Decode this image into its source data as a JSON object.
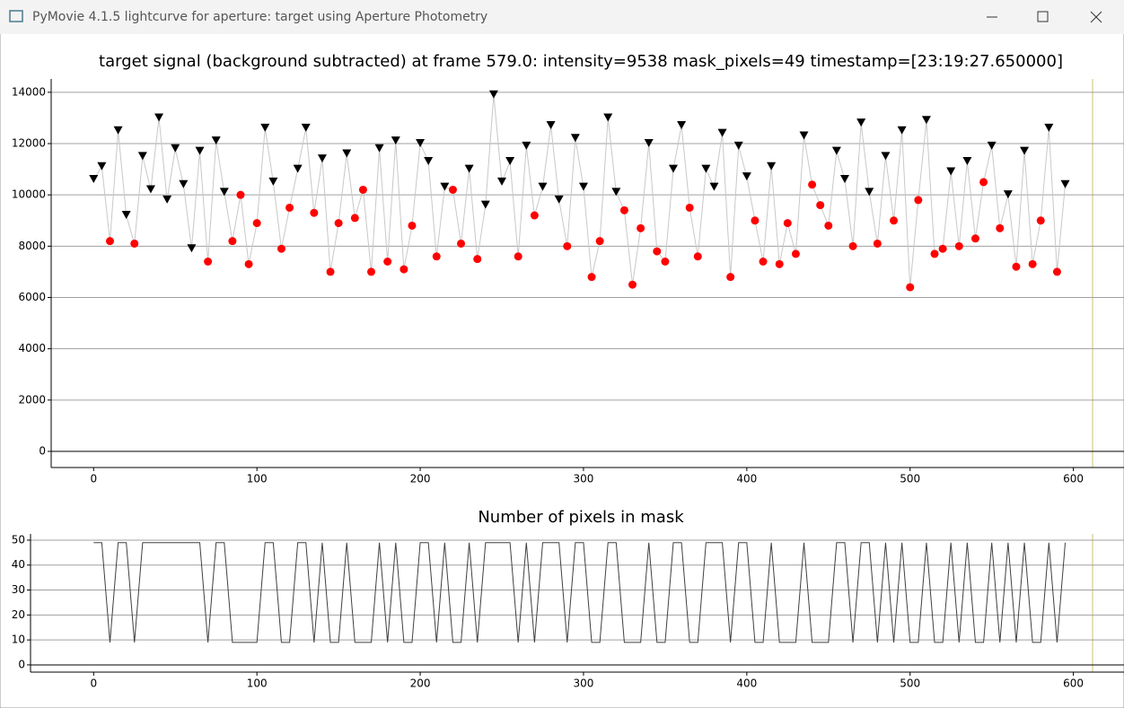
{
  "window": {
    "title": "PyMovie 4.1.5 lightcurve for aperture: target using Aperture Photometry"
  },
  "chart_data": [
    {
      "type": "scatter",
      "title": "target signal (background subtracted) at frame 579.0: intensity=9538 mask_pixels=49 timestamp=[23:19:27.650000]",
      "xlim": [
        -26,
        631
      ],
      "ylim": [
        -630,
        14520
      ],
      "xticks": [
        0,
        100,
        200,
        300,
        400,
        500,
        600
      ],
      "yticks": [
        0,
        2000,
        4000,
        6000,
        8000,
        10000,
        12000,
        14000
      ],
      "grid": true,
      "line_color": "#c8c8c8",
      "marker_colors": {
        "v": "#000000",
        "o": "#ff0000"
      },
      "series": [
        {
          "x": [
            0,
            5,
            10,
            15,
            20,
            25,
            30,
            35,
            40,
            45,
            50,
            55,
            60,
            65,
            70,
            75,
            80,
            85,
            90,
            95,
            100,
            105,
            110,
            115,
            120,
            125,
            130,
            135,
            140,
            145,
            150,
            155,
            160,
            165,
            170,
            175,
            180,
            185,
            190,
            195,
            200,
            205,
            210,
            215,
            220,
            225,
            230,
            235,
            240,
            245,
            250,
            255,
            260,
            265,
            270,
            275,
            280,
            285,
            290,
            295,
            300,
            305,
            310,
            315,
            320,
            325,
            330,
            335,
            340,
            345,
            350,
            355,
            360,
            365,
            370,
            375,
            380,
            385,
            390,
            395,
            400,
            405,
            410,
            415,
            420,
            425,
            430,
            435,
            440,
            445,
            450,
            455,
            460,
            465,
            470,
            475,
            480,
            485,
            490,
            495,
            500,
            505,
            510,
            515,
            520,
            525,
            530,
            535,
            540,
            545,
            550,
            555,
            560,
            565,
            570,
            575,
            580,
            585,
            590,
            595
          ],
          "values": [
            10600,
            11100,
            8200,
            12500,
            9200,
            8100,
            11500,
            10200,
            13000,
            9800,
            11800,
            10400,
            7900,
            11700,
            7400,
            12100,
            10100,
            8200,
            10000,
            7300,
            8900,
            12600,
            10500,
            7900,
            9500,
            11000,
            12600,
            9300,
            11400,
            7000,
            8900,
            11600,
            9100,
            10200,
            7000,
            11800,
            7400,
            12100,
            7100,
            8800,
            12000,
            11300,
            7600,
            10300,
            10200,
            8100,
            11000,
            7500,
            9600,
            13900,
            10500,
            11300,
            7600,
            11900,
            9200,
            10300,
            12700,
            9800,
            8000,
            12200,
            10300,
            6800,
            8200,
            13000,
            10100,
            9400,
            6500,
            8700,
            12000,
            7800,
            7400,
            11000,
            12700,
            9500,
            7600,
            11000,
            10300,
            12400,
            6800,
            11900,
            10700,
            9000,
            7400,
            11100,
            7300,
            8900,
            7700,
            12300,
            10400,
            9600,
            8800,
            11700,
            10600,
            8000,
            12800,
            10100,
            8100,
            11500,
            9000,
            12500,
            6400,
            9800,
            12900,
            7700,
            7900,
            10900,
            8000,
            11300,
            8300,
            10500,
            11900,
            8700,
            10000,
            7200,
            11700,
            7300,
            9000,
            12600,
            7000,
            10400
          ],
          "markers": [
            "v",
            "v",
            "o",
            "v",
            "v",
            "o",
            "v",
            "v",
            "v",
            "v",
            "v",
            "v",
            "v",
            "v",
            "o",
            "v",
            "v",
            "o",
            "o",
            "o",
            "o",
            "v",
            "v",
            "o",
            "o",
            "v",
            "v",
            "o",
            "v",
            "o",
            "o",
            "v",
            "o",
            "o",
            "o",
            "v",
            "o",
            "v",
            "o",
            "o",
            "v",
            "v",
            "o",
            "v",
            "o",
            "o",
            "v",
            "o",
            "v",
            "v",
            "v",
            "v",
            "o",
            "v",
            "o",
            "v",
            "v",
            "v",
            "o",
            "v",
            "v",
            "o",
            "o",
            "v",
            "v",
            "o",
            "o",
            "o",
            "v",
            "o",
            "o",
            "v",
            "v",
            "o",
            "o",
            "v",
            "v",
            "v",
            "o",
            "v",
            "v",
            "o",
            "o",
            "v",
            "o",
            "o",
            "o",
            "v",
            "o",
            "o",
            "o",
            "v",
            "v",
            "o",
            "v",
            "v",
            "o",
            "v",
            "o",
            "v",
            "o",
            "o",
            "v",
            "o",
            "o",
            "v",
            "o",
            "v",
            "o",
            "o",
            "v",
            "o",
            "v",
            "o",
            "v",
            "o",
            "o",
            "v",
            "o",
            "v"
          ]
        }
      ]
    },
    {
      "type": "line",
      "title": "Number of pixels in mask",
      "xlim": [
        -26,
        631
      ],
      "ylim": [
        -2.9,
        52.5
      ],
      "xticks": [
        0,
        100,
        200,
        300,
        400,
        500,
        600
      ],
      "yticks": [
        0,
        10,
        20,
        30,
        40,
        50
      ],
      "grid": true,
      "color": "#404040",
      "series": [
        {
          "x": [
            0,
            5,
            10,
            15,
            20,
            25,
            30,
            35,
            40,
            45,
            50,
            55,
            60,
            65,
            70,
            75,
            80,
            85,
            90,
            95,
            100,
            105,
            110,
            115,
            120,
            125,
            130,
            135,
            140,
            145,
            150,
            155,
            160,
            165,
            170,
            175,
            180,
            185,
            190,
            195,
            200,
            205,
            210,
            215,
            220,
            225,
            230,
            235,
            240,
            245,
            250,
            255,
            260,
            265,
            270,
            275,
            280,
            285,
            290,
            295,
            300,
            305,
            310,
            315,
            320,
            325,
            330,
            335,
            340,
            345,
            350,
            355,
            360,
            365,
            370,
            375,
            380,
            385,
            390,
            395,
            400,
            405,
            410,
            415,
            420,
            425,
            430,
            435,
            440,
            445,
            450,
            455,
            460,
            465,
            470,
            475,
            480,
            485,
            490,
            495,
            500,
            505,
            510,
            515,
            520,
            525,
            530,
            535,
            540,
            545,
            550,
            555,
            560,
            565,
            570,
            575,
            580,
            585,
            590,
            595
          ],
          "values": [
            49,
            49,
            9,
            49,
            49,
            9,
            49,
            49,
            49,
            49,
            49,
            49,
            49,
            49,
            9,
            49,
            49,
            9,
            9,
            9,
            9,
            49,
            49,
            9,
            9,
            49,
            49,
            9,
            49,
            9,
            9,
            49,
            9,
            9,
            9,
            49,
            9,
            49,
            9,
            9,
            49,
            49,
            9,
            49,
            9,
            9,
            49,
            9,
            49,
            49,
            49,
            49,
            9,
            49,
            9,
            49,
            49,
            49,
            9,
            49,
            49,
            9,
            9,
            49,
            49,
            9,
            9,
            9,
            49,
            9,
            9,
            49,
            49,
            9,
            9,
            49,
            49,
            49,
            9,
            49,
            49,
            9,
            9,
            49,
            9,
            9,
            9,
            49,
            9,
            9,
            9,
            49,
            49,
            9,
            49,
            49,
            9,
            49,
            9,
            49,
            9,
            9,
            49,
            9,
            9,
            49,
            9,
            49,
            9,
            9,
            49,
            9,
            49,
            9,
            49,
            9,
            9,
            49,
            9,
            49
          ]
        }
      ]
    }
  ]
}
